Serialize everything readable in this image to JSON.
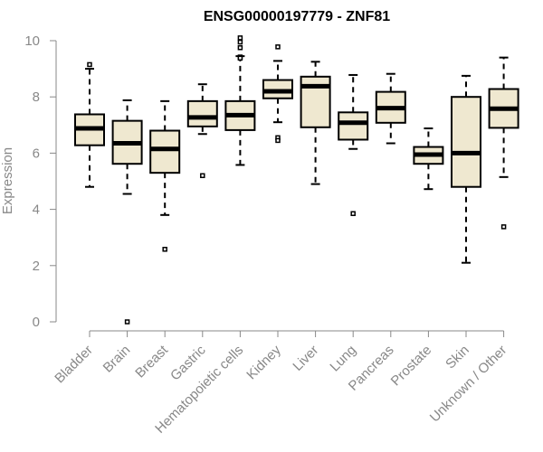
{
  "chart_data": {
    "type": "boxplot",
    "title": "ENSG00000197779 - ZNF81",
    "xlabel": "",
    "ylabel": "Expression",
    "ylim": [
      0,
      10
    ],
    "yticks": [
      0,
      2,
      4,
      6,
      8,
      10
    ],
    "grid": false,
    "categories": [
      "Bladder",
      "Brain",
      "Breast",
      "Gastric",
      "Hematopoietic cells",
      "Kidney",
      "Liver",
      "Lung",
      "Pancreas",
      "Prostate",
      "Skin",
      "Unknown / Other"
    ],
    "boxes": [
      {
        "name": "Bladder",
        "whisker_low": 4.8,
        "q1": 6.28,
        "median": 6.88,
        "q3": 7.38,
        "whisker_high": 9.0,
        "outliers": [
          9.15
        ]
      },
      {
        "name": "Brain",
        "whisker_low": 4.55,
        "q1": 5.62,
        "median": 6.35,
        "q3": 7.15,
        "whisker_high": 7.88,
        "outliers": [
          0.0
        ]
      },
      {
        "name": "Breast",
        "whisker_low": 3.8,
        "q1": 5.3,
        "median": 6.15,
        "q3": 6.8,
        "whisker_high": 7.85,
        "outliers": [
          2.58
        ]
      },
      {
        "name": "Gastric",
        "whisker_low": 6.68,
        "q1": 6.95,
        "median": 7.27,
        "q3": 7.85,
        "whisker_high": 8.45,
        "outliers": [
          5.2
        ]
      },
      {
        "name": "Hematopoietic cells",
        "whisker_low": 5.58,
        "q1": 6.82,
        "median": 7.35,
        "q3": 7.85,
        "whisker_high": 9.45,
        "outliers": [
          10.1,
          9.95,
          9.75,
          9.42,
          9.38
        ]
      },
      {
        "name": "Kidney",
        "whisker_low": 7.1,
        "q1": 7.95,
        "median": 8.2,
        "q3": 8.6,
        "whisker_high": 9.28,
        "outliers": [
          9.78,
          6.55,
          6.45
        ]
      },
      {
        "name": "Liver",
        "whisker_low": 4.9,
        "q1": 6.92,
        "median": 8.38,
        "q3": 8.72,
        "whisker_high": 9.25,
        "outliers": []
      },
      {
        "name": "Lung",
        "whisker_low": 6.15,
        "q1": 6.48,
        "median": 7.08,
        "q3": 7.45,
        "whisker_high": 8.78,
        "outliers": [
          3.85
        ]
      },
      {
        "name": "Pancreas",
        "whisker_low": 6.35,
        "q1": 7.08,
        "median": 7.6,
        "q3": 8.18,
        "whisker_high": 8.82,
        "outliers": []
      },
      {
        "name": "Prostate",
        "whisker_low": 4.72,
        "q1": 5.62,
        "median": 5.95,
        "q3": 6.22,
        "whisker_high": 6.88,
        "outliers": []
      },
      {
        "name": "Skin",
        "whisker_low": 2.1,
        "q1": 4.8,
        "median": 6.0,
        "q3": 8.0,
        "whisker_high": 8.75,
        "outliers": []
      },
      {
        "name": "Unknown / Other",
        "whisker_low": 5.15,
        "q1": 6.9,
        "median": 7.58,
        "q3": 8.28,
        "whisker_high": 9.4,
        "outliers": [
          3.38
        ]
      }
    ],
    "colors": {
      "box_fill": "#efe8d0",
      "box_stroke": "#000000",
      "axis": "#888888"
    }
  }
}
